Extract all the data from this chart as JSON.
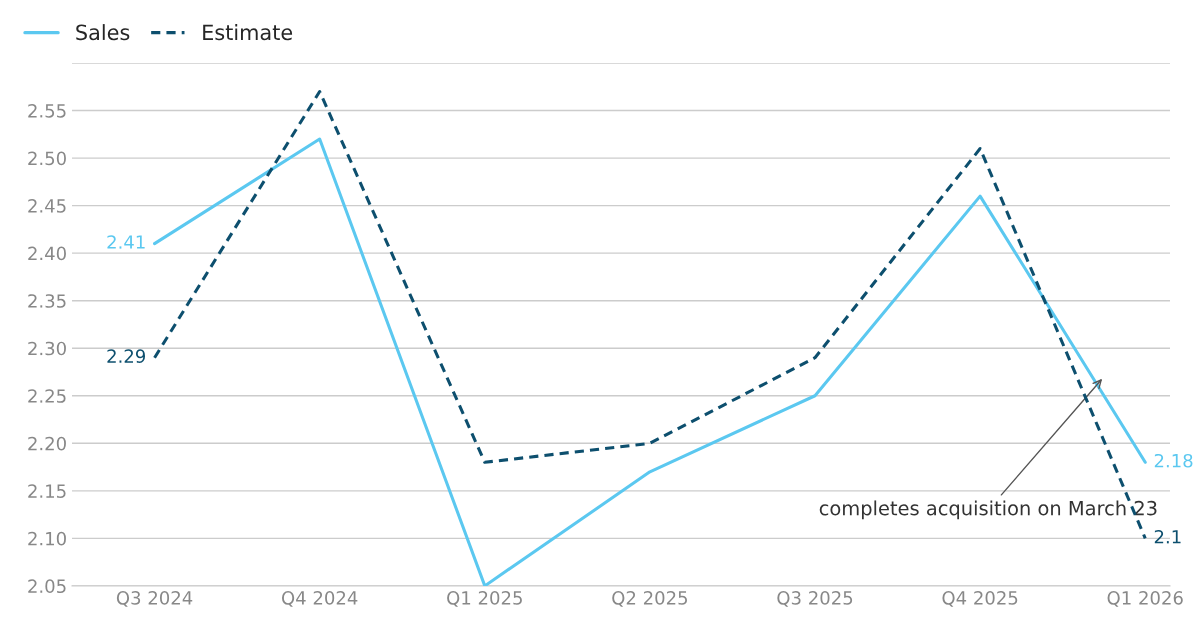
{
  "chart_data": {
    "type": "line",
    "categories": [
      "Q3 2024",
      "Q4 2024",
      "Q1 2025",
      "Q2 2025",
      "Q3 2025",
      "Q4 2025",
      "Q1 2026"
    ],
    "series": [
      {
        "name": "Sales",
        "color": "#5bc8f0",
        "line_style": "solid",
        "values": [
          2.41,
          2.52,
          2.05,
          2.17,
          2.25,
          2.46,
          2.18
        ],
        "value_labels": [
          "2.41",
          null,
          null,
          null,
          null,
          null,
          "2.18"
        ]
      },
      {
        "name": "Estimate",
        "color": "#0d4f6e",
        "line_style": "dashed",
        "values": [
          2.29,
          2.57,
          2.18,
          2.2,
          2.29,
          2.51,
          2.1
        ],
        "value_labels": [
          "2.29",
          null,
          null,
          null,
          null,
          null,
          "2.1"
        ]
      }
    ],
    "ylim": [
      2.05,
      2.6
    ],
    "yticks": [
      2.05,
      {
        "value": 2.1,
        "label": "2.10"
      },
      2.15,
      {
        "value": 2.2,
        "label": "2.20"
      },
      2.25,
      {
        "value": 2.3,
        "label": "2.30"
      },
      2.35,
      {
        "value": 2.4,
        "label": "2.40"
      },
      2.45,
      {
        "value": 2.5,
        "label": "2.50"
      },
      2.55,
      {
        "value": 2.6,
        "label": null
      }
    ],
    "grid": "y",
    "legend": "top left",
    "marker": "none",
    "annotations": [
      "completes acquisition on March 23"
    ]
  }
}
